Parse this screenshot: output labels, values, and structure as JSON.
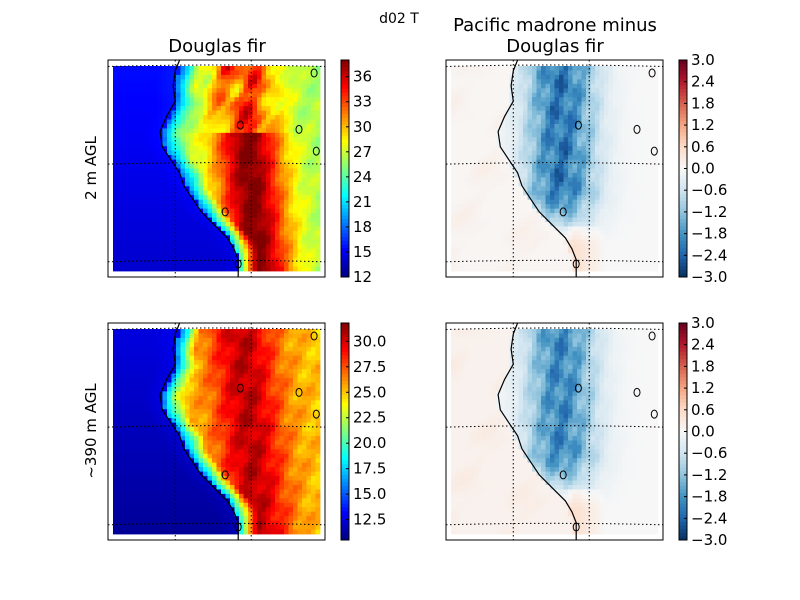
{
  "suptitle": "d02 T",
  "chart_data": [
    {
      "type": "heatmap",
      "title": "Douglas fir",
      "ylabel": "2 m AGL",
      "colormap": "jet",
      "colorbar_ticks": [
        "12",
        "15",
        "18",
        "21",
        "24",
        "27",
        "30",
        "33",
        "36"
      ],
      "colorbar_range": [
        12,
        38
      ],
      "values_note": "",
      "field": {
        "coast_value": 14,
        "inland_max": 38,
        "land_base": 26
      }
    },
    {
      "type": "heatmap",
      "title": "Pacific madrone minus\nDouglas fir",
      "ylabel": "",
      "colormap": "RdBu_r",
      "colorbar_ticks": [
        "3.0",
        "2.4",
        "1.8",
        "1.2",
        "0.6",
        "0.0",
        "−0.6",
        "−1.2",
        "−1.8",
        "−2.4",
        "−3.0"
      ],
      "colorbar_range": [
        -3.0,
        3.0
      ],
      "field": {
        "ocean_value": 0.0,
        "inland_min": -2.9
      }
    },
    {
      "type": "heatmap",
      "title": "",
      "ylabel": "~390 m AGL",
      "colormap": "jet",
      "colorbar_ticks": [
        "30.0",
        "27.5",
        "25.0",
        "22.5",
        "20.0",
        "17.5",
        "15.0",
        "12.5"
      ],
      "colorbar_range": [
        10.5,
        31.8
      ],
      "field": {
        "coast_value": 11,
        "inland_max": 30.5,
        "land_base": 25
      }
    },
    {
      "type": "heatmap",
      "title": "",
      "ylabel": "",
      "colormap": "RdBu_r",
      "colorbar_ticks": [
        "3.0",
        "2.4",
        "1.8",
        "1.2",
        "0.6",
        "0.0",
        "−0.6",
        "−1.2",
        "−1.8",
        "−2.4",
        "−3.0"
      ],
      "colorbar_range": [
        -3.0,
        3.0
      ],
      "field": {
        "ocean_value": 0.0,
        "inland_min": -2.6
      }
    }
  ]
}
